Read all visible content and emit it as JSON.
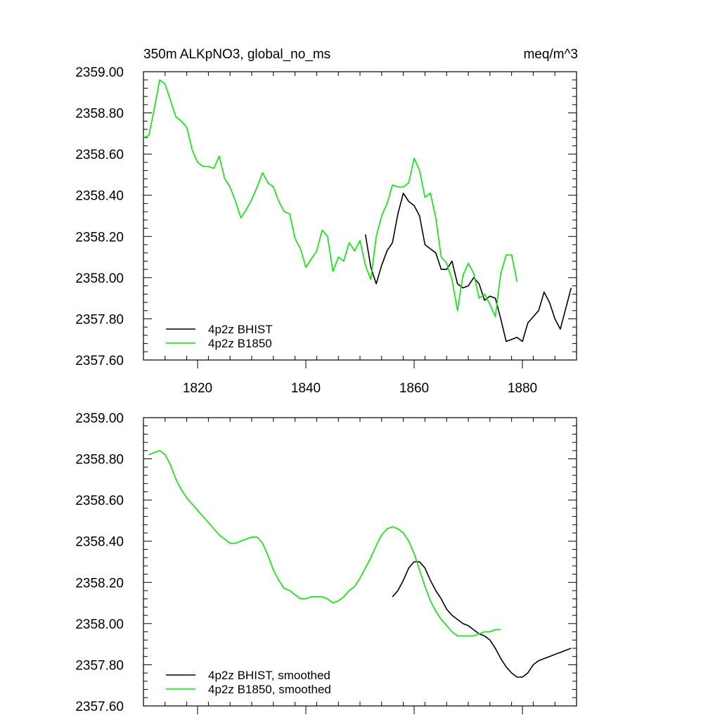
{
  "chart_data": [
    {
      "type": "line",
      "title_left": "350m ALKpNO3, global_no_ms",
      "title_right": "meq/m^3",
      "xlabel": "",
      "ylabel": "",
      "xlim": [
        1810,
        1890
      ],
      "ylim": [
        2357.6,
        2359.0
      ],
      "xticks": [
        1820,
        1840,
        1860,
        1880
      ],
      "xtick_labels": [
        "1820",
        "1840",
        "1860",
        "1880"
      ],
      "yticks": [
        2357.6,
        2357.8,
        2358.0,
        2358.2,
        2358.4,
        2358.6,
        2358.8,
        2359.0
      ],
      "ytick_labels": [
        "2357.60",
        "2357.80",
        "2358.00",
        "2358.20",
        "2358.40",
        "2358.60",
        "2358.80",
        "2359.00"
      ],
      "legend_position": "bottom-left",
      "series": [
        {
          "name": "4p2z BHIST",
          "color": "#000000",
          "x": [
            1851,
            1852,
            1853,
            1854,
            1855,
            1856,
            1857,
            1858,
            1859,
            1860,
            1861,
            1862,
            1863,
            1864,
            1865,
            1866,
            1867,
            1868,
            1869,
            1870,
            1871,
            1872,
            1873,
            1874,
            1875,
            1876,
            1877,
            1878,
            1879,
            1880,
            1881,
            1882,
            1883,
            1884,
            1885,
            1886,
            1887,
            1888,
            1889
          ],
          "y": [
            2358.21,
            2358.05,
            2357.97,
            2358.06,
            2358.13,
            2358.17,
            2358.31,
            2358.41,
            2358.37,
            2358.35,
            2358.3,
            2358.16,
            2358.14,
            2358.12,
            2358.04,
            2358.04,
            2358.08,
            2357.97,
            2357.95,
            2357.96,
            2358.0,
            2357.97,
            2357.89,
            2357.91,
            2357.9,
            2357.8,
            2357.69,
            2357.7,
            2357.71,
            2357.69,
            2357.78,
            2357.81,
            2357.84,
            2357.93,
            2357.88,
            2357.8,
            2357.75,
            2357.85,
            2357.95
          ]
        },
        {
          "name": "4p2z B1850",
          "color": "#00ee00",
          "x": [
            1810,
            1811,
            1812,
            1813,
            1814,
            1815,
            1816,
            1817,
            1818,
            1819,
            1820,
            1821,
            1822,
            1823,
            1824,
            1825,
            1826,
            1827,
            1828,
            1829,
            1830,
            1831,
            1832,
            1833,
            1834,
            1835,
            1836,
            1837,
            1838,
            1839,
            1840,
            1841,
            1842,
            1843,
            1844,
            1845,
            1846,
            1847,
            1848,
            1849,
            1850,
            1851,
            1852,
            1853,
            1854,
            1855,
            1856,
            1857,
            1858,
            1859,
            1860,
            1861,
            1862,
            1863,
            1864,
            1865,
            1866,
            1867,
            1868,
            1869,
            1870,
            1871,
            1872,
            1873,
            1874,
            1875,
            1876,
            1877,
            1878,
            1879
          ],
          "y": [
            2358.68,
            2358.69,
            2358.82,
            2358.96,
            2358.94,
            2358.86,
            2358.78,
            2358.76,
            2358.73,
            2358.62,
            2358.56,
            2358.54,
            2358.54,
            2358.53,
            2358.59,
            2358.48,
            2358.44,
            2358.37,
            2358.29,
            2358.33,
            2358.38,
            2358.44,
            2358.51,
            2358.46,
            2358.44,
            2358.37,
            2358.32,
            2358.31,
            2358.19,
            2358.14,
            2358.05,
            2358.09,
            2358.13,
            2358.23,
            2358.2,
            2358.03,
            2358.1,
            2358.08,
            2358.17,
            2358.13,
            2358.18,
            2358.06,
            2357.99,
            2358.2,
            2358.3,
            2358.36,
            2358.45,
            2358.44,
            2358.44,
            2358.46,
            2358.58,
            2358.52,
            2358.39,
            2358.41,
            2358.29,
            2358.1,
            2358.07,
            2357.99,
            2357.84,
            2358.01,
            2358.07,
            2358.02,
            2357.9,
            2357.92,
            2357.87,
            2357.81,
            2358.02,
            2358.11,
            2358.11,
            2357.98
          ]
        }
      ]
    },
    {
      "type": "line",
      "title_left": "",
      "title_right": "",
      "xlabel": "",
      "ylabel": "",
      "xlim": [
        1810,
        1890
      ],
      "ylim": [
        2357.6,
        2359.0
      ],
      "xticks": [
        1820,
        1840,
        1860,
        1880
      ],
      "yticks": [
        2357.6,
        2357.8,
        2358.0,
        2358.2,
        2358.4,
        2358.6,
        2358.8,
        2359.0
      ],
      "ytick_labels": [
        "2357.60",
        "2357.80",
        "2358.00",
        "2358.20",
        "2358.40",
        "2358.60",
        "2358.80",
        "2359.00"
      ],
      "legend_position": "bottom-left",
      "series": [
        {
          "name": "4p2z BHIST, smoothed",
          "color": "#000000",
          "x": [
            1856,
            1857,
            1858,
            1859,
            1860,
            1861,
            1862,
            1863,
            1864,
            1865,
            1866,
            1867,
            1868,
            1869,
            1870,
            1871,
            1872,
            1873,
            1874,
            1875,
            1876,
            1877,
            1878,
            1879,
            1880,
            1881,
            1882,
            1883,
            1884,
            1885,
            1886,
            1887,
            1888,
            1889
          ],
          "y": [
            2358.13,
            2358.16,
            2358.21,
            2358.27,
            2358.3,
            2358.3,
            2358.27,
            2358.21,
            2358.16,
            2358.12,
            2358.07,
            2358.04,
            2358.02,
            2358.0,
            2357.99,
            2357.97,
            2357.95,
            2357.94,
            2357.92,
            2357.88,
            2357.83,
            2357.79,
            2357.76,
            2357.74,
            2357.74,
            2357.76,
            2357.8,
            2357.82,
            2357.83,
            2357.84,
            2357.85,
            2357.86,
            2357.87,
            2357.88
          ]
        },
        {
          "name": "4p2z B1850, smoothed",
          "color": "#00ee00",
          "x": [
            1811,
            1812,
            1813,
            1814,
            1815,
            1816,
            1817,
            1818,
            1819,
            1820,
            1821,
            1822,
            1823,
            1824,
            1825,
            1826,
            1827,
            1828,
            1829,
            1830,
            1831,
            1832,
            1833,
            1834,
            1835,
            1836,
            1837,
            1838,
            1839,
            1840,
            1841,
            1842,
            1843,
            1844,
            1845,
            1846,
            1847,
            1848,
            1849,
            1850,
            1851,
            1852,
            1853,
            1854,
            1855,
            1856,
            1857,
            1858,
            1859,
            1860,
            1861,
            1862,
            1863,
            1864,
            1865,
            1866,
            1867,
            1868,
            1869,
            1870,
            1871,
            1872,
            1873,
            1874,
            1875,
            1876
          ],
          "y": [
            2358.82,
            2358.83,
            2358.84,
            2358.82,
            2358.77,
            2358.7,
            2358.65,
            2358.61,
            2358.58,
            2358.55,
            2358.52,
            2358.49,
            2358.46,
            2358.43,
            2358.41,
            2358.39,
            2358.39,
            2358.4,
            2358.41,
            2358.42,
            2358.42,
            2358.39,
            2358.33,
            2358.26,
            2358.21,
            2358.17,
            2358.16,
            2358.14,
            2358.12,
            2358.12,
            2358.13,
            2358.13,
            2358.13,
            2358.12,
            2358.1,
            2358.11,
            2358.13,
            2358.16,
            2358.18,
            2358.22,
            2358.27,
            2358.32,
            2358.38,
            2358.43,
            2358.46,
            2358.47,
            2358.46,
            2358.44,
            2358.4,
            2358.34,
            2358.26,
            2358.18,
            2358.11,
            2358.06,
            2358.02,
            2357.99,
            2357.96,
            2357.94,
            2357.94,
            2357.94,
            2357.94,
            2357.95,
            2357.96,
            2357.96,
            2357.97,
            2357.97
          ]
        }
      ]
    }
  ]
}
